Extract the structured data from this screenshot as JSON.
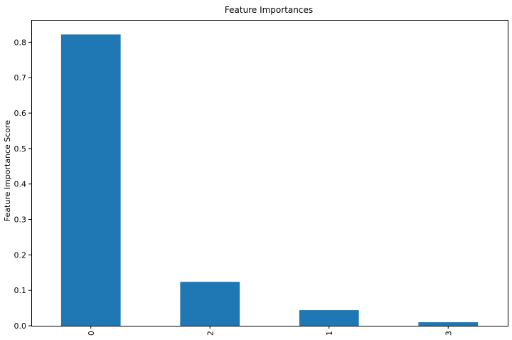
{
  "chart_data": {
    "type": "bar",
    "title": "Feature Importances",
    "xlabel": "",
    "ylabel": "Feature Importance Score",
    "categories": [
      "0",
      "2",
      "1",
      "3"
    ],
    "values": [
      0.822,
      0.124,
      0.044,
      0.01
    ],
    "ylim": [
      0,
      0.863
    ],
    "yticks": [
      0.0,
      0.1,
      0.2,
      0.3,
      0.4,
      0.5,
      0.6,
      0.7,
      0.8
    ],
    "ytick_labels": [
      "0.0",
      "0.1",
      "0.2",
      "0.3",
      "0.4",
      "0.5",
      "0.6",
      "0.7",
      "0.8"
    ],
    "grid": false,
    "bar_color": "#1f77b4",
    "xtick_rotation": "vertical"
  }
}
